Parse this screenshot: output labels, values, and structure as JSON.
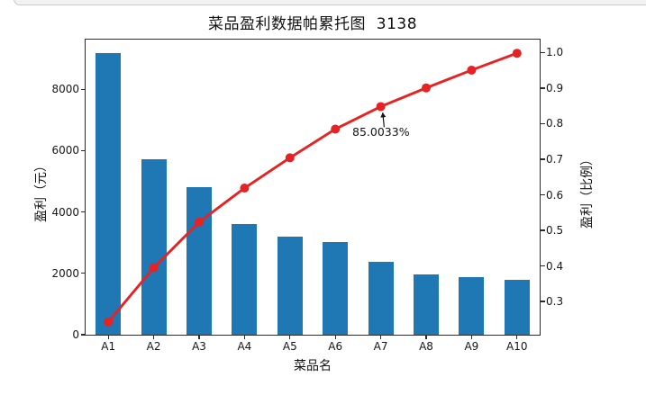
{
  "chart_data": {
    "type": "pareto (bar + cumulative line, dual y-axes)",
    "title": "菜品盈利数据帕累托图  3138",
    "xlabel": "菜品名",
    "ylabel_left": "盈利（元）",
    "ylabel_right": "盈利（比例）",
    "categories": [
      "A1",
      "A2",
      "A3",
      "A4",
      "A5",
      "A6",
      "A7",
      "A8",
      "A9",
      "A10"
    ],
    "series": [
      {
        "name": "盈利（元）",
        "type": "bar",
        "color": "#1f77b4",
        "values": [
          9173,
          5729,
          4811,
          3594,
          3195,
          3026,
          2378,
          1970,
          1877,
          1782
        ]
      },
      {
        "name": "盈利（比例）",
        "type": "line",
        "color": "#e62222",
        "marker": "circle",
        "values": [
          0.2444,
          0.397,
          0.5252,
          0.6209,
          0.7061,
          0.7867,
          0.85,
          0.9025,
          0.9525,
          1.0
        ]
      }
    ],
    "yticks_left": {
      "labels": [
        "0",
        "2000",
        "4000",
        "6000",
        "8000"
      ],
      "values": [
        0,
        2000,
        4000,
        6000,
        8000
      ]
    },
    "yticks_right": {
      "labels": [
        "0.3",
        "0.4",
        "0.5",
        "0.6",
        "0.7",
        "0.8",
        "0.9",
        "1.0"
      ],
      "values": [
        0.3,
        0.4,
        0.5,
        0.6,
        0.7,
        0.8,
        0.9,
        1.0
      ]
    },
    "ylim_left": [
      0,
      9632
    ],
    "ylim_right": [
      0.2066,
      1.0378
    ],
    "grid": false,
    "legend": "none",
    "annotation": {
      "text": "85.0033%",
      "target_category": "A7",
      "target_value": 0.850033
    }
  }
}
